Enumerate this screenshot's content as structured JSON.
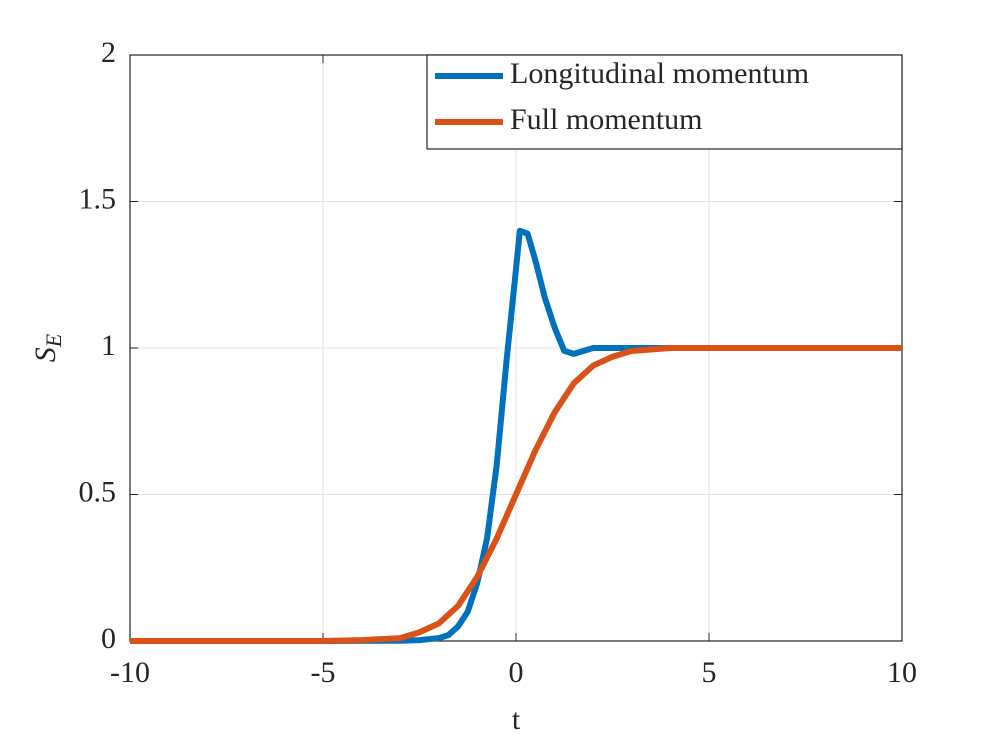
{
  "chart_data": {
    "type": "line",
    "x_label": "t",
    "y_label": {
      "text": "S",
      "subscript": "E"
    },
    "xlim": [
      -10,
      10
    ],
    "xticks": [
      -10,
      -5,
      0,
      5,
      10
    ],
    "ylim": [
      0,
      2
    ],
    "yticks": [
      0,
      0.5,
      1,
      1.5,
      2
    ],
    "grid": true,
    "legend": "top-right",
    "series": [
      {
        "name": "Longitudinal momentum",
        "color": "#0072bd",
        "x": [
          -10,
          -5,
          -3,
          -2.5,
          -2,
          -1.75,
          -1.5,
          -1.25,
          -1,
          -0.75,
          -0.5,
          -0.25,
          0,
          0.1,
          0.3,
          0.5,
          0.75,
          1,
          1.25,
          1.5,
          1.75,
          2,
          2.5,
          3,
          4,
          10
        ],
        "values": [
          0,
          0,
          0.001,
          0.003,
          0.01,
          0.02,
          0.05,
          0.1,
          0.2,
          0.35,
          0.6,
          0.95,
          1.27,
          1.4,
          1.39,
          1.3,
          1.17,
          1.07,
          0.99,
          0.98,
          0.99,
          1,
          1,
          1,
          1,
          1
        ]
      },
      {
        "name": "Full momentum",
        "color": "#d95319",
        "x": [
          -10,
          -5,
          -4,
          -3,
          -2.5,
          -2,
          -1.5,
          -1,
          -0.5,
          0,
          0.5,
          1,
          1.5,
          2,
          2.5,
          3,
          4,
          10
        ],
        "values": [
          0,
          0,
          0.003,
          0.01,
          0.03,
          0.06,
          0.12,
          0.22,
          0.35,
          0.5,
          0.65,
          0.78,
          0.88,
          0.94,
          0.97,
          0.99,
          1,
          1
        ]
      }
    ]
  }
}
